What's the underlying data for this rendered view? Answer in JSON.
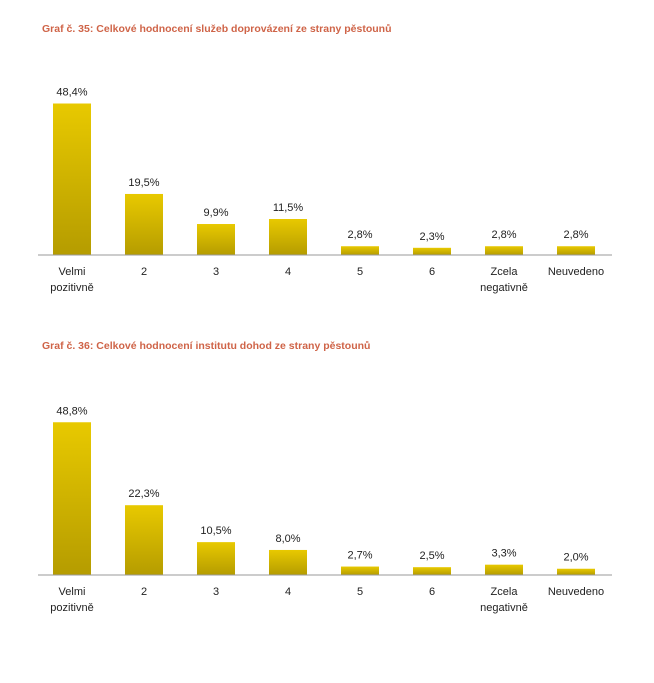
{
  "chart_data": [
    {
      "type": "bar",
      "title": "Graf č. 35: Celkové hodnocení služeb doprovázení ze strany pěstounů",
      "categories": [
        [
          "Velmi",
          "pozitivně"
        ],
        [
          "2"
        ],
        [
          "3"
        ],
        [
          "4"
        ],
        [
          "5"
        ],
        [
          "6"
        ],
        [
          "Zcela",
          "negativně"
        ],
        [
          "Neuvedeno"
        ]
      ],
      "values": [
        48.4,
        19.5,
        9.9,
        11.5,
        2.8,
        2.3,
        2.8,
        2.8
      ],
      "labels": [
        "48,4%",
        "19,5%",
        "9,9%",
        "11,5%",
        "2,8%",
        "2,3%",
        "2,8%",
        "2,8%"
      ],
      "ylim": [
        0,
        50
      ],
      "grid": false,
      "bar_color_top": "#e8c900",
      "bar_color_bottom": "#b59c00"
    },
    {
      "type": "bar",
      "title": "Graf č. 36: Celkové hodnocení institutu dohod ze strany pěstounů",
      "categories": [
        [
          "Velmi",
          "pozitivně"
        ],
        [
          "2"
        ],
        [
          "3"
        ],
        [
          "4"
        ],
        [
          "5"
        ],
        [
          "6"
        ],
        [
          "Zcela",
          "negativně"
        ],
        [
          "Neuvedeno"
        ]
      ],
      "values": [
        48.8,
        22.3,
        10.5,
        8.0,
        2.7,
        2.5,
        3.3,
        2.0
      ],
      "labels": [
        "48,8%",
        "22,3%",
        "10,5%",
        "8,0%",
        "2,7%",
        "2,5%",
        "3,3%",
        "2,0%"
      ],
      "ylim": [
        0,
        50
      ],
      "grid": false,
      "bar_color_top": "#e8c900",
      "bar_color_bottom": "#b59c00"
    }
  ]
}
